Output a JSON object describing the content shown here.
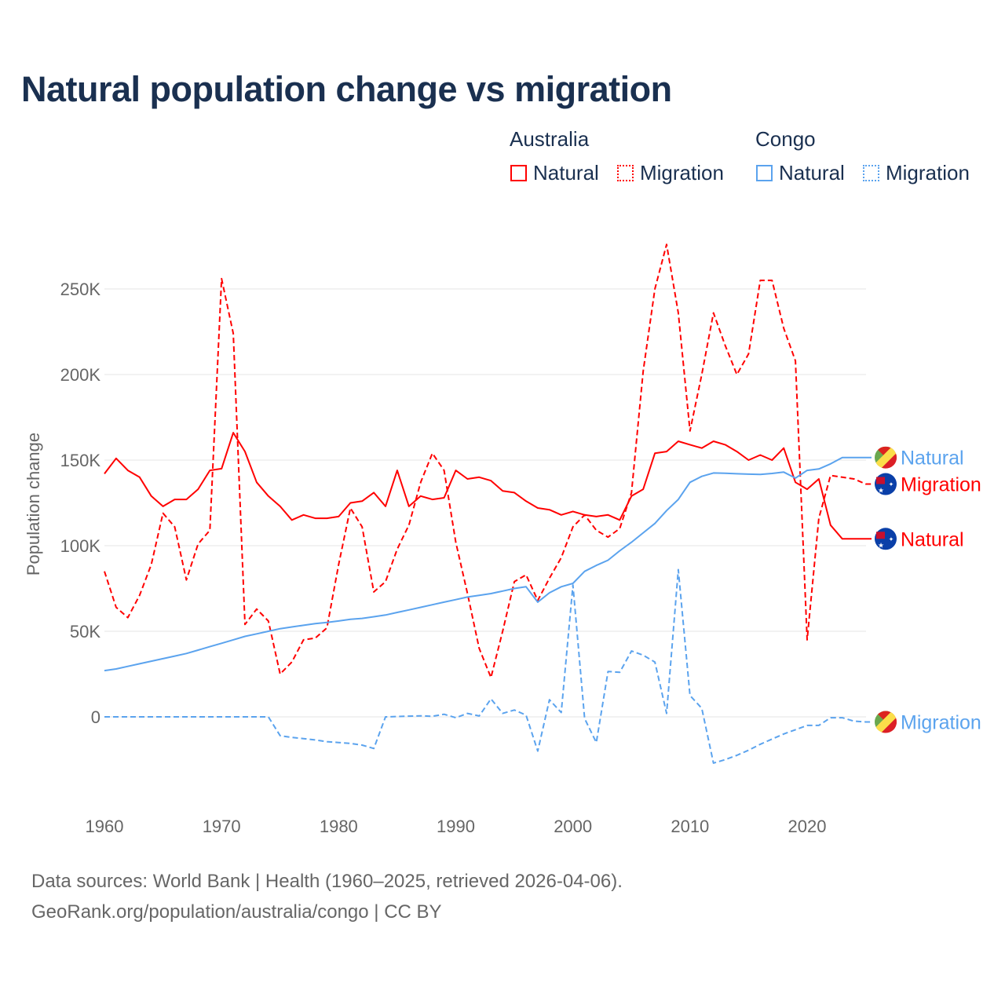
{
  "chart_data": {
    "type": "line",
    "title": "Natural population change vs migration",
    "xlabel": "",
    "ylabel": "Population change",
    "xlim": [
      1960,
      2025
    ],
    "ylim": [
      -45000,
      280000
    ],
    "x_ticks": [
      1960,
      1970,
      1980,
      1990,
      2000,
      2010,
      2020
    ],
    "x_tick_labels": [
      "1960",
      "1970",
      "1980",
      "1990",
      "2000",
      "2010",
      "2020"
    ],
    "y_ticks": [
      0,
      50000,
      100000,
      150000,
      200000,
      250000
    ],
    "y_tick_labels": [
      "0",
      "50K",
      "100K",
      "150K",
      "200K",
      "250K"
    ],
    "grid": true,
    "legend": {
      "placement": "top-right",
      "groups": [
        {
          "title": "Australia",
          "items": [
            "Natural",
            "Migration"
          ]
        },
        {
          "title": "Congo",
          "items": [
            "Natural",
            "Migration"
          ]
        }
      ]
    },
    "x_start": 1960,
    "series": [
      {
        "name": "Australia Natural",
        "country": "Australia",
        "kind": "Natural",
        "label": "Natural",
        "color": "#ff0000",
        "dash": false,
        "flag": "australia-flag",
        "values": [
          142,
          151,
          144,
          140,
          129,
          123,
          127,
          127,
          133,
          144,
          145,
          166,
          155,
          137,
          129,
          123,
          115,
          118,
          116,
          116,
          117,
          125,
          126,
          131,
          123,
          144,
          123,
          129,
          127,
          128,
          144,
          139,
          140,
          138,
          132,
          131,
          126,
          122,
          121,
          118,
          120,
          118,
          117,
          118,
          115,
          129,
          133,
          154,
          155,
          161,
          159,
          157,
          161,
          159,
          155,
          150,
          153,
          150,
          157,
          137,
          133,
          139,
          112,
          104,
          104,
          104
        ]
      },
      {
        "name": "Australia Migration",
        "country": "Australia",
        "kind": "Migration",
        "label": "Migration",
        "color": "#ff0000",
        "dash": true,
        "flag": "australia-flag",
        "values": [
          85,
          64,
          58,
          71,
          89,
          119,
          111,
          80,
          101,
          109,
          256,
          224,
          54,
          63,
          56,
          25,
          32,
          45,
          46,
          52,
          89,
          122,
          111,
          73,
          79,
          98,
          112,
          137,
          154,
          144,
          102,
          72,
          40,
          23,
          50,
          79,
          83,
          68,
          81,
          93,
          111,
          118,
          109,
          105,
          110,
          131,
          202,
          250,
          276,
          236,
          167,
          200,
          236,
          217,
          200,
          212,
          255,
          255,
          227,
          208,
          45,
          116,
          141,
          140,
          139,
          136
        ]
      },
      {
        "name": "Congo Natural",
        "country": "Congo",
        "kind": "Natural",
        "label": "Natural",
        "color": "#5ba3ee",
        "dash": false,
        "flag": "congo-flag",
        "values": [
          27,
          28,
          29.5,
          31,
          32.5,
          34,
          35.5,
          37,
          39,
          41,
          43,
          45,
          47,
          48.5,
          50,
          51.5,
          52.5,
          53.5,
          54.5,
          55.2,
          56,
          57,
          57.5,
          58.5,
          59.5,
          61,
          62.5,
          64,
          65.5,
          67,
          68.5,
          70,
          71,
          72,
          73.5,
          75,
          76,
          67,
          72.5,
          76,
          78,
          85,
          88.5,
          91.5,
          97,
          102,
          107.5,
          113,
          120.5,
          127,
          137,
          140.5,
          142.5,
          142.3,
          142,
          141.8,
          141.6,
          142.2,
          143,
          139.5,
          144,
          144.8,
          147.8,
          151.5,
          151.5,
          151.5
        ]
      },
      {
        "name": "Congo Migration",
        "country": "Congo",
        "kind": "Migration",
        "label": "Migration",
        "color": "#5ba3ee",
        "dash": true,
        "flag": "congo-flag",
        "values": [
          0,
          0,
          0,
          0,
          0,
          0,
          0,
          0,
          0,
          0,
          0,
          0,
          0,
          0,
          0,
          -11,
          -12,
          -12.7,
          -13.5,
          -14.5,
          -15,
          -15.5,
          -16.5,
          -18.5,
          0,
          0.2,
          0.4,
          0.6,
          0.3,
          1.5,
          -0.5,
          2,
          0.5,
          10.5,
          2,
          4,
          1,
          -20,
          10,
          2.5,
          77,
          -1,
          -15,
          26.5,
          26,
          38.5,
          36,
          32,
          2,
          86,
          12.5,
          5,
          -27,
          -25,
          -22.5,
          -19.5,
          -16,
          -13,
          -10,
          -7.5,
          -5,
          -5,
          -0.5,
          -0.5,
          -2.5,
          -3
        ]
      }
    ],
    "value_unit": "thousands"
  },
  "legend_titles": {
    "australia": "Australia",
    "congo": "Congo"
  },
  "legend_labels": {
    "au_natural": "Natural",
    "au_migration": "Migration",
    "cg_natural": "Natural",
    "cg_migration": "Migration"
  },
  "footer": {
    "line1": "Data sources: World Bank | Health (1960–2025, retrieved 2026-04-06).",
    "line2": "GeoRank.org/population/australia/congo | CC BY"
  },
  "colors": {
    "australia": "#ff0000",
    "congo": "#5ba3ee",
    "title": "#1a3050"
  }
}
